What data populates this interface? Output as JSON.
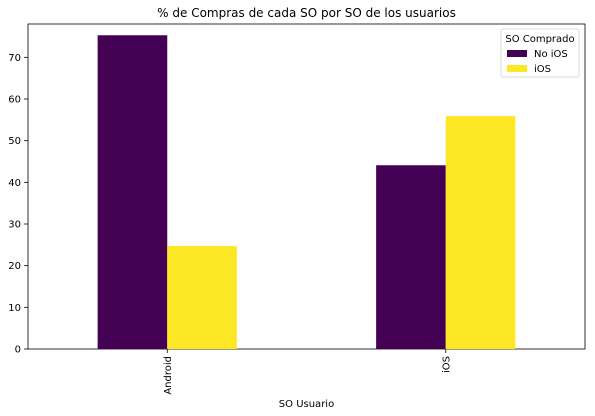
{
  "chart_data": {
    "type": "bar",
    "title": "% de Compras de cada SO por SO de los usuarios",
    "xlabel": "SO Usuario",
    "ylabel": "",
    "categories": [
      "Android",
      "iOS"
    ],
    "series": [
      {
        "name": "No iOS",
        "values": [
          75.3,
          44.1
        ],
        "color": "#440154"
      },
      {
        "name": "iOS",
        "values": [
          24.7,
          55.9
        ],
        "color": "#fde725"
      }
    ],
    "ylim": [
      0,
      78
    ],
    "yticks": [
      0,
      10,
      20,
      30,
      40,
      50,
      60,
      70
    ],
    "legend": {
      "title": "SO Comprado",
      "placement": "top-right"
    },
    "grid": false
  }
}
